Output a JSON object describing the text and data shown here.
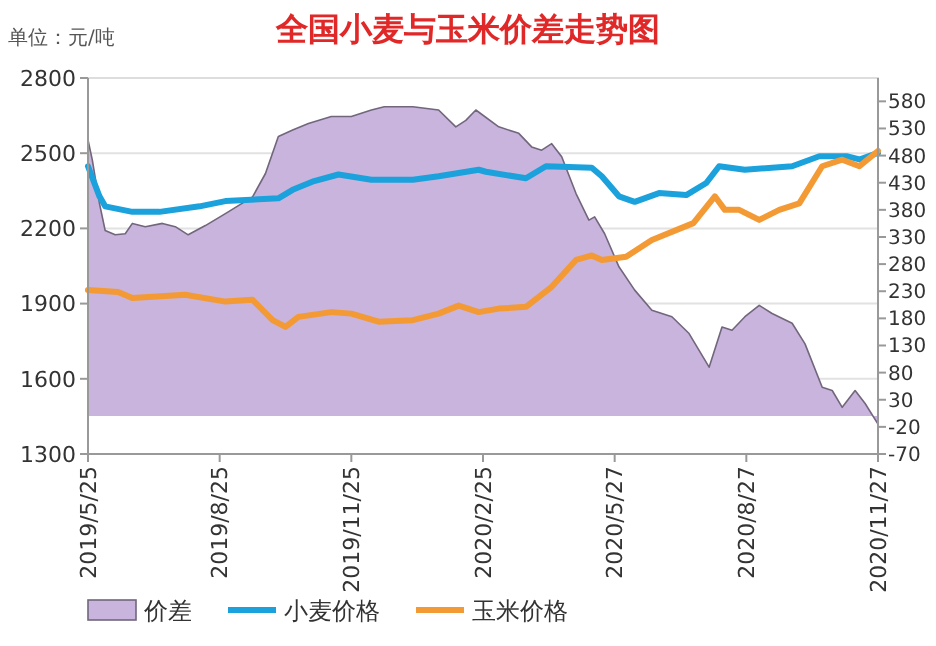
{
  "chart_data": {
    "type": "line",
    "title": "全国小麦与玉米价差走势图",
    "annotations": [
      "单位：元/吨"
    ],
    "xlim": [
      "2019-05-25",
      "2020-11-27"
    ],
    "xticks": [
      {
        "value": "2019-05-25",
        "label": "2019/5/25"
      },
      {
        "value": "2019-08-25",
        "label": "2019/8/25"
      },
      {
        "value": "2019-11-25",
        "label": "2019/11/25"
      },
      {
        "value": "2020-02-25",
        "label": "2020/2/25"
      },
      {
        "value": "2020-05-27",
        "label": "2020/5/27"
      },
      {
        "value": "2020-08-27",
        "label": "2020/8/27"
      },
      {
        "value": "2020-11-27",
        "label": "2020/11/27"
      }
    ],
    "ylim": [
      1300,
      2800
    ],
    "yticks": [
      1300,
      1600,
      1900,
      2200,
      2500,
      2800
    ],
    "y2lim": [
      -70,
      623
    ],
    "y2ticks": [
      -70,
      -20,
      30,
      80,
      130,
      180,
      230,
      280,
      330,
      380,
      430,
      480,
      530,
      580
    ],
    "grid": "y",
    "legend": "bottom",
    "series": [
      {
        "name": "价差",
        "type": "area",
        "axis": "y2",
        "color": "#c8b4dc",
        "x": [
          "2019-05-25",
          "2019-05-28",
          "2019-06-02",
          "2019-06-06",
          "2019-06-13",
          "2019-06-20",
          "2019-06-25",
          "2019-07-04",
          "2019-07-16",
          "2019-07-25",
          "2019-08-03",
          "2019-08-15",
          "2019-08-29",
          "2019-09-17",
          "2019-09-26",
          "2019-10-05",
          "2019-10-15",
          "2019-10-26",
          "2019-11-11",
          "2019-11-25",
          "2019-12-09",
          "2019-12-18",
          "2020-01-07",
          "2020-01-25",
          "2020-02-06",
          "2020-02-13",
          "2020-02-20",
          "2020-03-07",
          "2020-03-21",
          "2020-03-30",
          "2020-04-06",
          "2020-04-13",
          "2020-04-20",
          "2020-04-30",
          "2020-05-09",
          "2020-05-13",
          "2020-05-20",
          "2020-05-30",
          "2020-06-10",
          "2020-06-22",
          "2020-07-06",
          "2020-07-18",
          "2020-08-01",
          "2020-08-10",
          "2020-08-17",
          "2020-08-26",
          "2020-09-05",
          "2020-09-14",
          "2020-09-28",
          "2020-10-07",
          "2020-10-19",
          "2020-10-26",
          "2020-11-02",
          "2020-11-11",
          "2020-11-18",
          "2020-11-27"
        ],
        "values": [
          509,
          472,
          392,
          342,
          334,
          336,
          355,
          349,
          355,
          349,
          334,
          351,
          373,
          404,
          447,
          515,
          527,
          539,
          552,
          552,
          564,
          570,
          570,
          564,
          533,
          545,
          564,
          533,
          521,
          496,
          490,
          502,
          478,
          410,
          361,
          367,
          336,
          275,
          232,
          195,
          183,
          152,
          90,
          164,
          158,
          183,
          204,
          189,
          171,
          133,
          53,
          47,
          16,
          47,
          23,
          -15
        ]
      },
      {
        "name": "小麦价格",
        "color": "#1ba1dc",
        "x": [
          "2019-05-25",
          "2019-06-02",
          "2019-06-06",
          "2019-06-25",
          "2019-07-14",
          "2019-08-11",
          "2019-08-29",
          "2019-10-05",
          "2019-10-15",
          "2019-10-30",
          "2019-11-16",
          "2019-12-09",
          "2020-01-07",
          "2020-01-25",
          "2020-02-22",
          "2020-02-27",
          "2020-03-26",
          "2020-04-09",
          "2020-05-11",
          "2020-05-18",
          "2020-05-30",
          "2020-06-10",
          "2020-06-27",
          "2020-07-16",
          "2020-07-30",
          "2020-08-08",
          "2020-08-26",
          "2020-09-28",
          "2020-10-17",
          "2020-11-05",
          "2020-11-14",
          "2020-11-27"
        ],
        "values": [
          2448,
          2328,
          2288,
          2266,
          2266,
          2288,
          2309,
          2320,
          2354,
          2389,
          2415,
          2394,
          2394,
          2408,
          2434,
          2426,
          2400,
          2448,
          2442,
          2408,
          2328,
          2306,
          2341,
          2333,
          2381,
          2448,
          2434,
          2448,
          2488,
          2488,
          2475,
          2501
        ]
      },
      {
        "name": "玉米价格",
        "color": "#f39a35",
        "x": [
          "2019-05-25",
          "2019-06-15",
          "2019-06-25",
          "2019-08-01",
          "2019-08-29",
          "2019-09-17",
          "2019-10-01",
          "2019-10-10",
          "2019-10-19",
          "2019-11-11",
          "2019-11-25",
          "2019-12-14",
          "2020-01-07",
          "2020-01-25",
          "2020-02-08",
          "2020-02-22",
          "2020-03-07",
          "2020-03-26",
          "2020-04-13",
          "2020-04-30",
          "2020-05-11",
          "2020-05-18",
          "2020-06-04",
          "2020-06-22",
          "2020-07-21",
          "2020-08-05",
          "2020-08-12",
          "2020-08-22",
          "2020-09-05",
          "2020-09-19",
          "2020-10-03",
          "2020-10-19",
          "2020-11-02",
          "2020-11-14",
          "2020-11-27"
        ],
        "values": [
          1954,
          1946,
          1922,
          1935,
          1908,
          1915,
          1834,
          1807,
          1847,
          1866,
          1860,
          1828,
          1834,
          1860,
          1892,
          1866,
          1880,
          1887,
          1967,
          2074,
          2092,
          2074,
          2087,
          2154,
          2221,
          2328,
          2274,
          2274,
          2234,
          2274,
          2300,
          2448,
          2474,
          2448,
          2509
        ]
      }
    ]
  }
}
